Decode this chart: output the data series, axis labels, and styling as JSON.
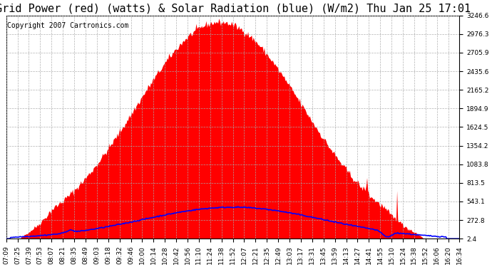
{
  "title": "Grid Power (red) (watts) & Solar Radiation (blue) (W/m2) Thu Jan 25 17:01",
  "copyright": "Copyright 2007 Cartronics.com",
  "background_color": "#ffffff",
  "plot_bg_color": "#ffffff",
  "grid_color": "#aaaaaa",
  "yticks": [
    2.4,
    272.8,
    543.1,
    813.5,
    1083.8,
    1354.2,
    1624.5,
    1894.9,
    2165.2,
    2435.6,
    2705.9,
    2976.3,
    3246.6
  ],
  "ymin": 2.4,
  "ymax": 3246.6,
  "xtick_labels": [
    "07:09",
    "07:25",
    "07:39",
    "07:53",
    "08:07",
    "08:21",
    "08:35",
    "08:49",
    "09:03",
    "09:18",
    "09:32",
    "09:46",
    "10:00",
    "10:14",
    "10:28",
    "10:42",
    "10:56",
    "11:10",
    "11:24",
    "11:38",
    "11:52",
    "12:07",
    "12:21",
    "12:35",
    "12:49",
    "13:03",
    "13:17",
    "13:31",
    "13:45",
    "13:59",
    "14:13",
    "14:27",
    "14:41",
    "14:55",
    "15:10",
    "15:24",
    "15:38",
    "15:52",
    "16:06",
    "16:20",
    "16:34"
  ],
  "red_fill_color": "#ff0000",
  "blue_line_color": "#0000ff",
  "title_fontsize": 11,
  "copyright_fontsize": 7,
  "tick_fontsize": 6.5
}
